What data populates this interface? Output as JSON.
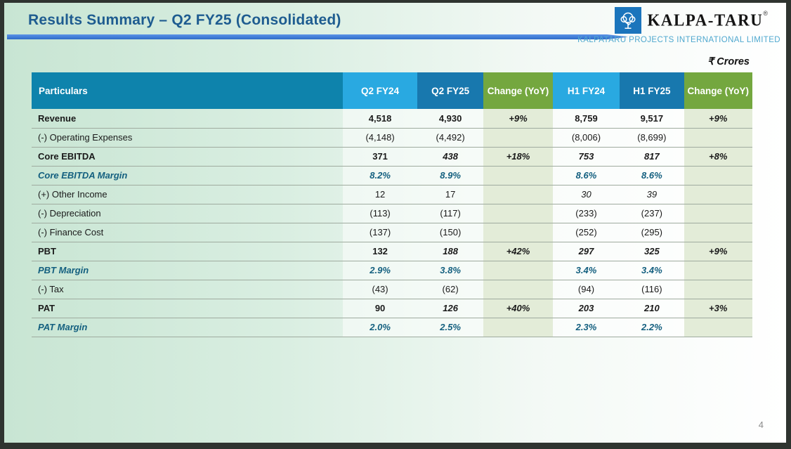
{
  "slide": {
    "title": "Results Summary – Q2 FY25 (Consolidated)",
    "units_label": "₹ Crores",
    "page_number": "4"
  },
  "logo": {
    "brand": "KALPA-TARU",
    "registered_mark": "®",
    "company_line": "KALPATARU PROJECTS INTERNATIONAL LIMITED",
    "icon": "kalpataru-tree-icon"
  },
  "colors": {
    "title_blue": "#1e5c90",
    "underline_blue": "#3c7cd9",
    "header_particulars": "#0e83ac",
    "header_light_blue": "#29a9e1",
    "header_dark_blue": "#1878ae",
    "header_green": "#74a73f",
    "change_column_bg": "#e3ecd8",
    "margin_text": "#135f7f",
    "slide_mint": "#c8e5d3",
    "logo_blue": "#1b75bc"
  },
  "table": {
    "columns": [
      {
        "label": "Particulars",
        "type": "label",
        "bg": "#0e83ac"
      },
      {
        "label": "Q2 FY24",
        "type": "value",
        "bg": "#29a9e1"
      },
      {
        "label": "Q2 FY25",
        "type": "value",
        "bg": "#1878ae"
      },
      {
        "label": "Change (YoY)",
        "type": "change",
        "bg": "#74a73f"
      },
      {
        "label": "H1 FY24",
        "type": "value",
        "bg": "#29a9e1"
      },
      {
        "label": "H1 FY25",
        "type": "value",
        "bg": "#1878ae"
      },
      {
        "label": "Change (YoY)",
        "type": "change",
        "bg": "#74a73f"
      }
    ],
    "rows": [
      {
        "label": "Revenue",
        "style": "bold",
        "cells": [
          {
            "v": "4,518",
            "s": "b"
          },
          {
            "v": "4,930",
            "s": "b"
          },
          {
            "v": "+9%",
            "s": "bi"
          },
          {
            "v": "8,759",
            "s": "b"
          },
          {
            "v": "9,517",
            "s": "b"
          },
          {
            "v": "+9%",
            "s": "bi"
          }
        ]
      },
      {
        "label": "(-) Operating Expenses",
        "style": "normal",
        "cells": [
          {
            "v": "(4,148)",
            "s": ""
          },
          {
            "v": "(4,492)",
            "s": ""
          },
          {
            "v": "",
            "s": ""
          },
          {
            "v": "(8,006)",
            "s": ""
          },
          {
            "v": "(8,699)",
            "s": ""
          },
          {
            "v": "",
            "s": ""
          }
        ]
      },
      {
        "label": "Core EBITDA",
        "style": "bold",
        "cells": [
          {
            "v": "371",
            "s": "b"
          },
          {
            "v": "438",
            "s": "bi"
          },
          {
            "v": "+18%",
            "s": "bi"
          },
          {
            "v": "753",
            "s": "bi"
          },
          {
            "v": "817",
            "s": "bi"
          },
          {
            "v": "+8%",
            "s": "bi"
          }
        ]
      },
      {
        "label": "Core EBITDA Margin",
        "style": "margin",
        "cells": [
          {
            "v": "8.2%",
            "s": ""
          },
          {
            "v": "8.9%",
            "s": ""
          },
          {
            "v": "",
            "s": ""
          },
          {
            "v": "8.6%",
            "s": ""
          },
          {
            "v": "8.6%",
            "s": ""
          },
          {
            "v": "",
            "s": ""
          }
        ]
      },
      {
        "label": "(+) Other Income",
        "style": "normal",
        "cells": [
          {
            "v": "12",
            "s": ""
          },
          {
            "v": "17",
            "s": ""
          },
          {
            "v": "",
            "s": ""
          },
          {
            "v": "30",
            "s": "i"
          },
          {
            "v": "39",
            "s": "i"
          },
          {
            "v": "",
            "s": ""
          }
        ]
      },
      {
        "label": "(-) Depreciation",
        "style": "normal",
        "cells": [
          {
            "v": "(113)",
            "s": ""
          },
          {
            "v": "(117)",
            "s": ""
          },
          {
            "v": "",
            "s": ""
          },
          {
            "v": "(233)",
            "s": ""
          },
          {
            "v": "(237)",
            "s": ""
          },
          {
            "v": "",
            "s": ""
          }
        ]
      },
      {
        "label": "(-) Finance Cost",
        "style": "normal",
        "cells": [
          {
            "v": "(137)",
            "s": ""
          },
          {
            "v": "(150)",
            "s": ""
          },
          {
            "v": "",
            "s": ""
          },
          {
            "v": "(252)",
            "s": ""
          },
          {
            "v": "(295)",
            "s": ""
          },
          {
            "v": "",
            "s": ""
          }
        ]
      },
      {
        "label": "PBT",
        "style": "bold",
        "cells": [
          {
            "v": "132",
            "s": "b"
          },
          {
            "v": "188",
            "s": "bi"
          },
          {
            "v": "+42%",
            "s": "bi"
          },
          {
            "v": "297",
            "s": "bi"
          },
          {
            "v": "325",
            "s": "bi"
          },
          {
            "v": "+9%",
            "s": "bi"
          }
        ]
      },
      {
        "label": "PBT Margin",
        "style": "margin",
        "cells": [
          {
            "v": "2.9%",
            "s": ""
          },
          {
            "v": "3.8%",
            "s": ""
          },
          {
            "v": "",
            "s": ""
          },
          {
            "v": "3.4%",
            "s": ""
          },
          {
            "v": "3.4%",
            "s": ""
          },
          {
            "v": "",
            "s": ""
          }
        ]
      },
      {
        "label": "(-) Tax",
        "style": "normal",
        "cells": [
          {
            "v": "(43)",
            "s": ""
          },
          {
            "v": "(62)",
            "s": ""
          },
          {
            "v": "",
            "s": ""
          },
          {
            "v": "(94)",
            "s": ""
          },
          {
            "v": "(116)",
            "s": ""
          },
          {
            "v": "",
            "s": ""
          }
        ]
      },
      {
        "label": "PAT",
        "style": "bold",
        "cells": [
          {
            "v": "90",
            "s": "b"
          },
          {
            "v": "126",
            "s": "bi"
          },
          {
            "v": "+40%",
            "s": "bi"
          },
          {
            "v": "203",
            "s": "bi"
          },
          {
            "v": "210",
            "s": "bi"
          },
          {
            "v": "+3%",
            "s": "bi"
          }
        ]
      },
      {
        "label": "PAT Margin",
        "style": "margin",
        "cells": [
          {
            "v": "2.0%",
            "s": ""
          },
          {
            "v": "2.5%",
            "s": ""
          },
          {
            "v": "",
            "s": ""
          },
          {
            "v": "2.3%",
            "s": ""
          },
          {
            "v": "2.2%",
            "s": ""
          },
          {
            "v": "",
            "s": ""
          }
        ]
      }
    ]
  }
}
